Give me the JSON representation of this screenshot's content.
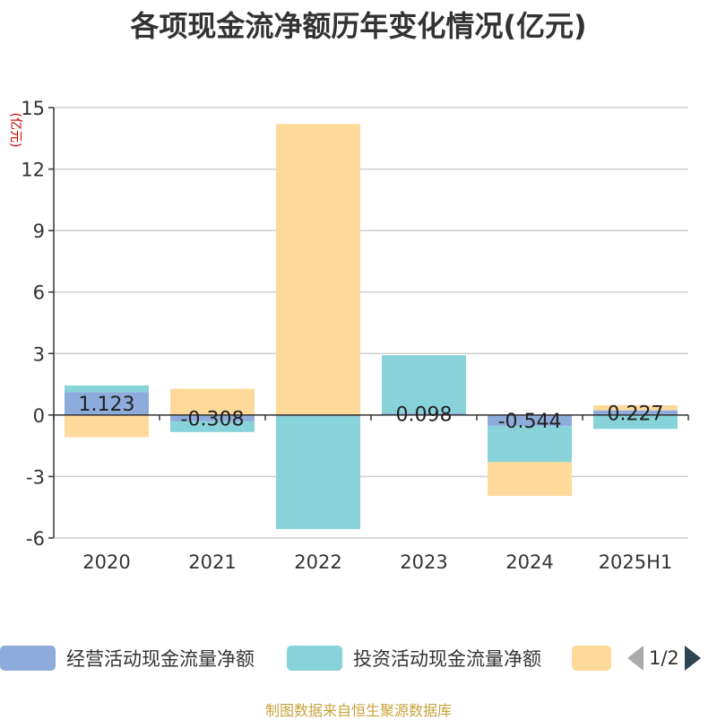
{
  "chart_data": {
    "type": "bar",
    "stacked": true,
    "title": "各项现金流净额历年变化情况(亿元)",
    "ylabel": "(亿元)",
    "categories": [
      "2020",
      "2021",
      "2022",
      "2023",
      "2024",
      "2025H1"
    ],
    "ylim": [
      -6,
      15
    ],
    "yticks": [
      15,
      12,
      9,
      6,
      3,
      0,
      -3,
      -6
    ],
    "grid": true,
    "legend_position": "bottom",
    "series": [
      {
        "name": "经营活动现金流量净额",
        "color": "#8eacdb",
        "values": [
          1.123,
          -0.308,
          -0.07,
          0.098,
          -0.544,
          0.227
        ],
        "labels": [
          "1.123",
          "-0.308",
          "",
          "0.098",
          "-0.544",
          "0.227"
        ]
      },
      {
        "name": "投资活动现金流量净额",
        "color": "#87d3d9",
        "values": [
          0.32,
          -0.52,
          -5.5,
          2.82,
          -1.75,
          -0.68
        ],
        "labels": []
      },
      {
        "name": "",
        "color": "#fed999",
        "values": [
          -1.08,
          1.28,
          14.2,
          0,
          -1.65,
          0.25
        ],
        "labels": []
      }
    ]
  },
  "legend": {
    "page": "1/2"
  },
  "source_note": "制图数据来自恒生聚源数据库"
}
